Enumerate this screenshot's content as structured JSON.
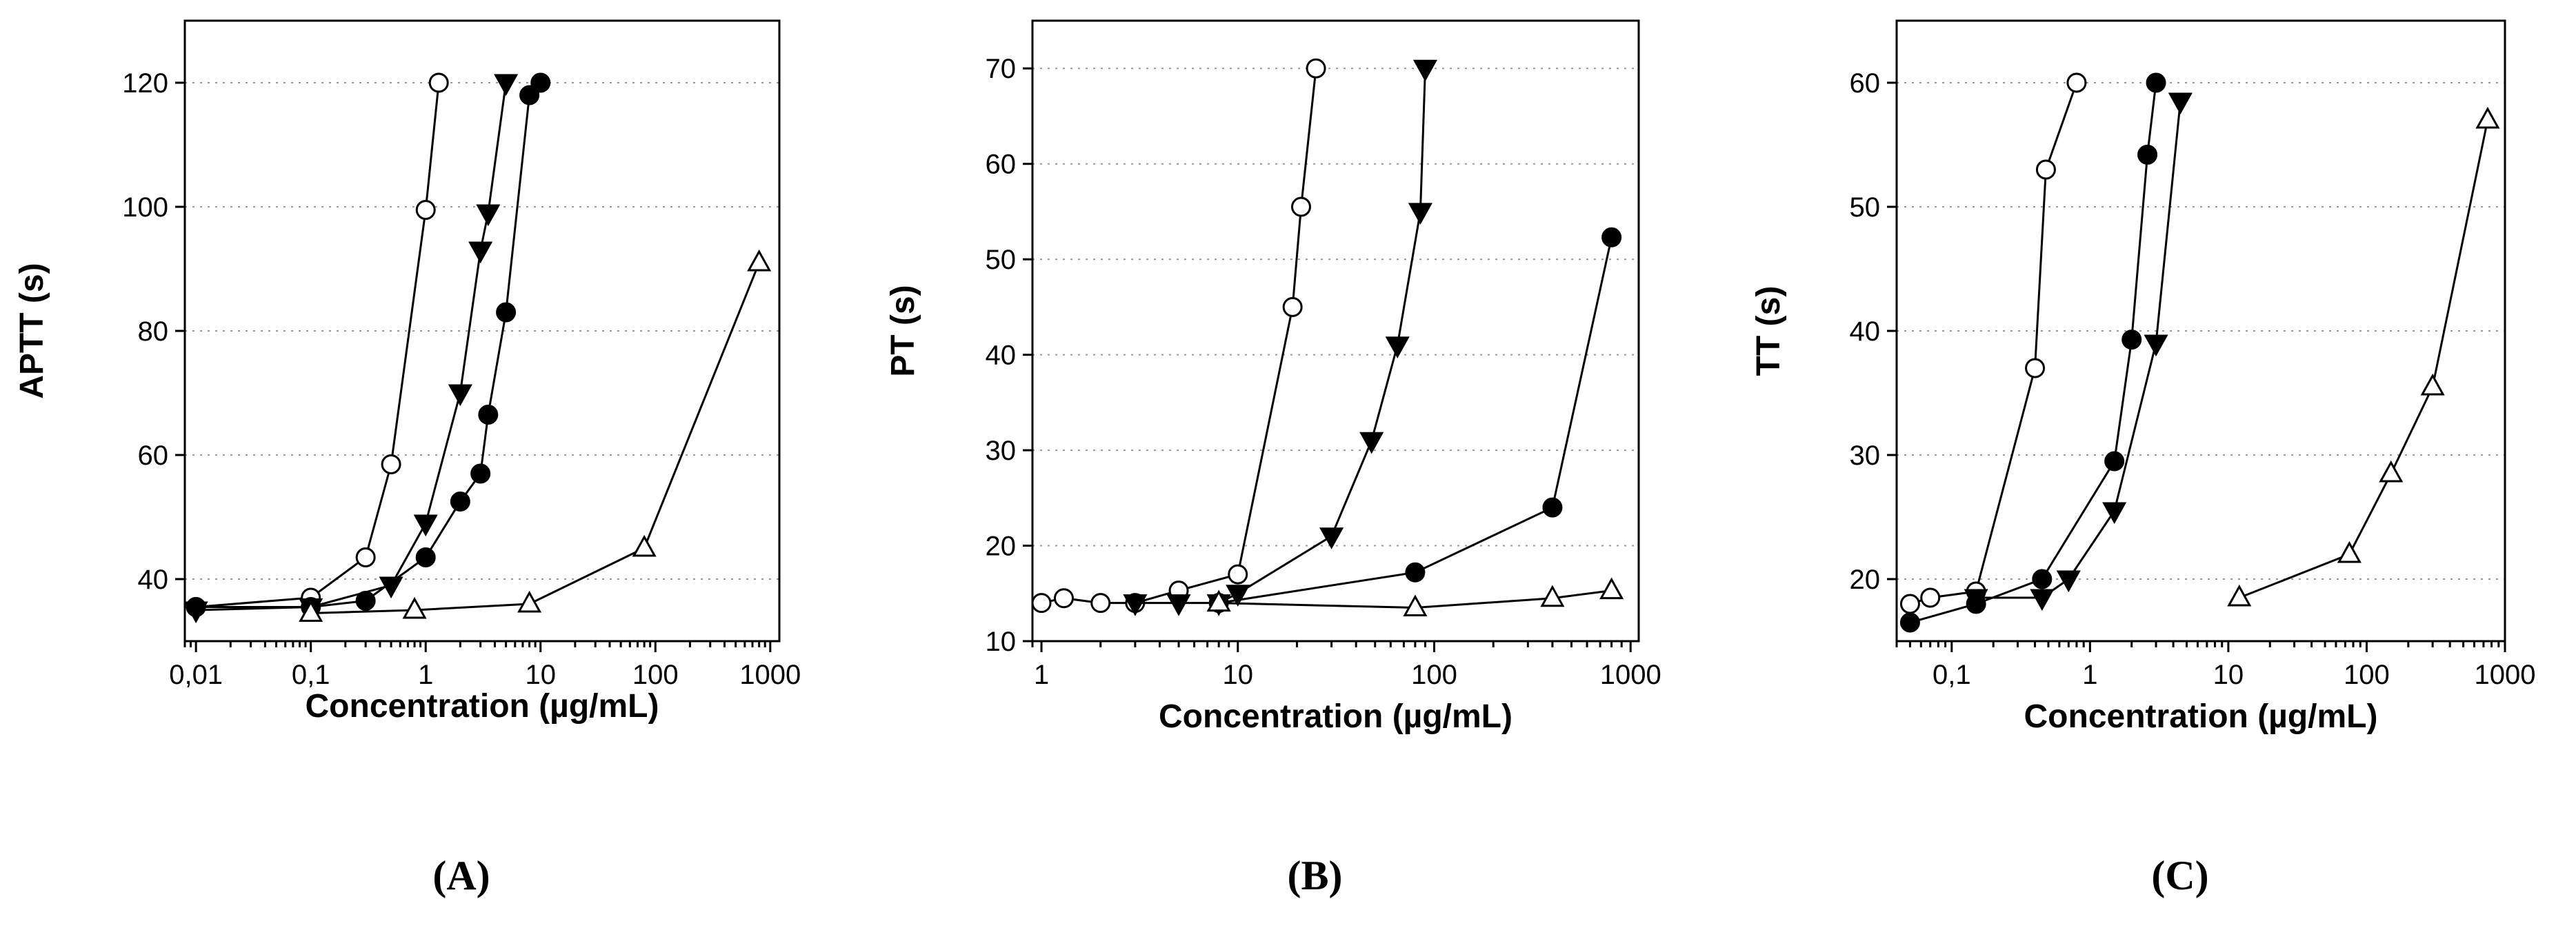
{
  "chart_data": [
    {
      "panel": "(A)",
      "type": "line",
      "ylabel": "APTT (s)",
      "xlabel": "Concentration (µg/mL)",
      "xscale": "log",
      "xlim": [
        0.008,
        1200
      ],
      "ylim": [
        30,
        130
      ],
      "xticks": [
        0.01,
        0.1,
        1,
        10,
        100,
        1000
      ],
      "xtick_labels": [
        "0,01",
        "0,1",
        "1",
        "10",
        "100",
        "1000"
      ],
      "yticks": [
        40,
        60,
        80,
        100,
        120
      ],
      "ytick_labels": [
        "40",
        "60",
        "80",
        "100",
        "120"
      ],
      "grid": "y-dotted",
      "series": [
        {
          "name": "open circle",
          "marker": "circle-open",
          "x": [
            0.01,
            0.1,
            0.3,
            0.5,
            1,
            1.3
          ],
          "y": [
            35.5,
            37,
            43.5,
            58.5,
            99.5,
            120
          ]
        },
        {
          "name": "filled triangle down",
          "marker": "triangle-down-filled",
          "x": [
            0.01,
            0.1,
            0.5,
            1,
            2,
            3,
            3.5,
            5
          ],
          "y": [
            35,
            35.5,
            39,
            49,
            70,
            93,
            99,
            120
          ]
        },
        {
          "name": "filled circle",
          "marker": "circle-filled",
          "x": [
            0.01,
            0.1,
            0.3,
            1,
            2,
            3,
            3.5,
            5,
            8,
            10
          ],
          "y": [
            35.5,
            35.5,
            36.5,
            43.5,
            52.5,
            57,
            66.5,
            83,
            118,
            120
          ]
        },
        {
          "name": "open triangle up",
          "marker": "triangle-up-open",
          "x": [
            0.1,
            0.8,
            8,
            80,
            800
          ],
          "y": [
            34.5,
            35,
            36,
            45,
            91
          ]
        }
      ]
    },
    {
      "panel": "(B)",
      "type": "line",
      "ylabel": "PT (s)",
      "xlabel": "Concentration (µg/mL)",
      "xscale": "log",
      "xlim": [
        0.9,
        1100
      ],
      "ylim": [
        10,
        75
      ],
      "xticks": [
        1,
        10,
        100,
        1000
      ],
      "xtick_labels": [
        "1",
        "10",
        "100",
        "1000"
      ],
      "yticks": [
        10,
        20,
        30,
        40,
        50,
        60,
        70
      ],
      "ytick_labels": [
        "10",
        "20",
        "30",
        "40",
        "50",
        "60",
        "70"
      ],
      "grid": "y-dotted",
      "series": [
        {
          "name": "open circle",
          "marker": "circle-open",
          "x": [
            1,
            1.3,
            2,
            3,
            5,
            10,
            19,
            21,
            25
          ],
          "y": [
            14,
            14.5,
            14,
            14,
            15.3,
            17,
            45,
            55.5,
            70
          ]
        },
        {
          "name": "filled triangle down",
          "marker": "triangle-down-filled",
          "x": [
            3,
            5,
            8,
            10,
            30,
            48,
            65,
            85,
            90
          ],
          "y": [
            14,
            14,
            14,
            15,
            21,
            31,
            41,
            55,
            70
          ]
        },
        {
          "name": "filled circle",
          "marker": "circle-filled",
          "x": [
            8,
            80,
            400,
            800
          ],
          "y": [
            14,
            17.2,
            24,
            52.3
          ]
        },
        {
          "name": "open triangle up",
          "marker": "triangle-up-open",
          "x": [
            8,
            80,
            400,
            800
          ],
          "y": [
            14,
            13.5,
            14.5,
            15.3
          ]
        }
      ]
    },
    {
      "panel": "(C)",
      "type": "line",
      "ylabel": "TT (s)",
      "xlabel": "Concentration (µg/mL)",
      "xscale": "log",
      "xlim": [
        0.04,
        1000
      ],
      "ylim": [
        15,
        65
      ],
      "xticks": [
        0.1,
        1,
        10,
        100,
        1000
      ],
      "xtick_labels": [
        "0,1",
        "1",
        "10",
        "100",
        "1000"
      ],
      "yticks": [
        20,
        30,
        40,
        50,
        60
      ],
      "ytick_labels": [
        "20",
        "30",
        "40",
        "50",
        "60"
      ],
      "grid": "y-dotted",
      "series": [
        {
          "name": "open circle",
          "marker": "circle-open",
          "x": [
            0.05,
            0.07,
            0.15,
            0.4,
            0.48,
            0.8
          ],
          "y": [
            18,
            18.5,
            19,
            37,
            53,
            60
          ]
        },
        {
          "name": "filled circle",
          "marker": "circle-filled",
          "x": [
            0.05,
            0.15,
            0.45,
            1.5,
            2,
            2.6,
            3
          ],
          "y": [
            16.5,
            18,
            20,
            29.5,
            39.3,
            54.2,
            60
          ]
        },
        {
          "name": "filled triangle down",
          "marker": "triangle-down-filled",
          "x": [
            0.15,
            0.45,
            0.7,
            1.5,
            3,
            4.5
          ],
          "y": [
            18.5,
            18.5,
            20,
            25.5,
            39,
            58.5
          ]
        },
        {
          "name": "open triangle up",
          "marker": "triangle-up-open",
          "x": [
            12,
            75,
            150,
            300,
            750
          ],
          "y": [
            18.5,
            22,
            28.5,
            35.5,
            57
          ]
        }
      ]
    }
  ]
}
